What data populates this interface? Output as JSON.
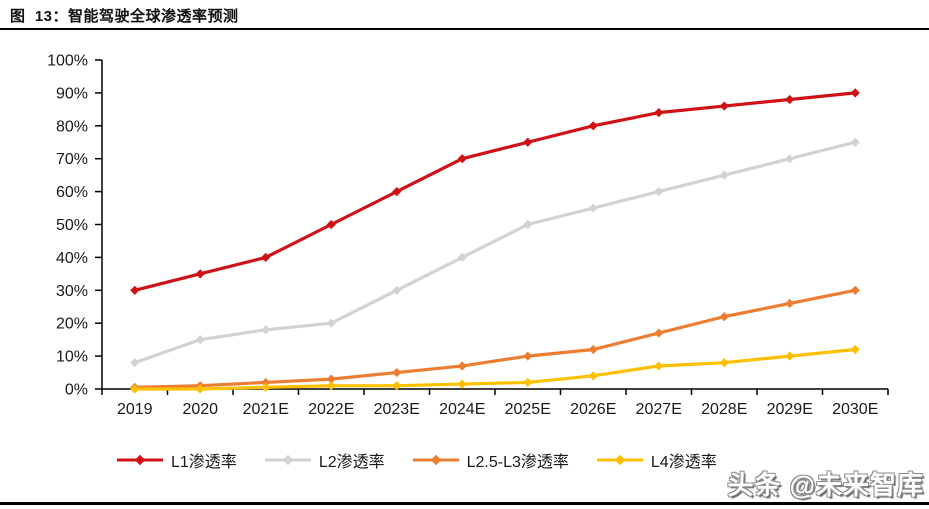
{
  "title": "图  13：智能驾驶全球渗透率预测",
  "watermark": "头条 @未来智库",
  "colors": {
    "axis": "#000000",
    "tick_text": "#1a1a1a",
    "background": "#ffffff"
  },
  "chart_data": {
    "type": "line",
    "title": "智能驾驶全球渗透率预测",
    "xlabel": "",
    "ylabel": "",
    "categories": [
      "2019",
      "2020",
      "2021E",
      "2022E",
      "2023E",
      "2024E",
      "2025E",
      "2026E",
      "2027E",
      "2028E",
      "2029E",
      "2030E"
    ],
    "series": [
      {
        "name": "L1渗透率",
        "color": "#d01217",
        "marker": "diamond",
        "values": [
          30,
          35,
          40,
          50,
          60,
          70,
          75,
          80,
          84,
          86,
          88,
          90
        ]
      },
      {
        "name": "L2渗透率",
        "color": "#d2d2d2",
        "marker": "diamond",
        "values": [
          8,
          15,
          18,
          20,
          30,
          40,
          50,
          55,
          60,
          65,
          70,
          75
        ]
      },
      {
        "name": "L2.5-L3渗透率",
        "color": "#ed7d31",
        "marker": "diamond",
        "values": [
          0.5,
          1,
          2,
          3,
          5,
          7,
          10,
          12,
          17,
          22,
          26,
          30
        ]
      },
      {
        "name": "L4渗透率",
        "color": "#ffc000",
        "marker": "diamond",
        "values": [
          0,
          0,
          0.5,
          1,
          1,
          1.5,
          2,
          4,
          7,
          8,
          10,
          12
        ]
      }
    ],
    "ylim": [
      0,
      100
    ],
    "ytick_step": 10,
    "ytick_suffix": "%",
    "grid": false,
    "legend_position": "bottom"
  }
}
